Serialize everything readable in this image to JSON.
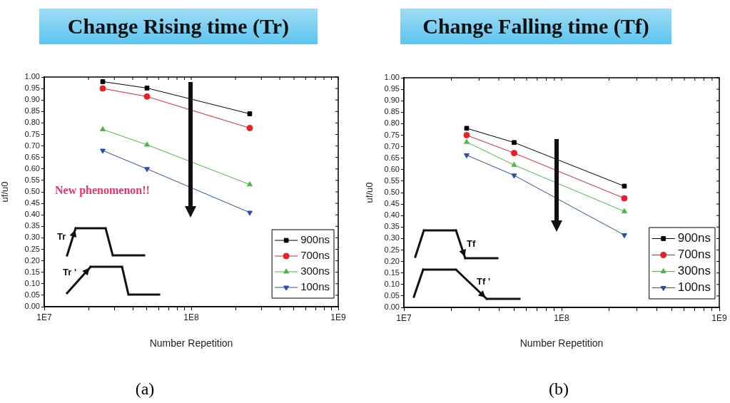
{
  "chart_data": [
    {
      "type": "line",
      "title": "Change Rising time (Tr)",
      "xlabel": "Number Repetition",
      "ylabel": "uf/u0",
      "log": "x",
      "grid": false,
      "legend": "bottom right",
      "x": [
        25000000,
        50000000,
        250000000
      ],
      "xlim": [
        10000000,
        1000000000
      ],
      "xticks": [
        {
          "value": 10000000,
          "label": "1E7"
        },
        {
          "value": 20000000,
          "label": null
        },
        {
          "value": 30000000,
          "label": null
        },
        {
          "value": 40000000,
          "label": null
        },
        {
          "value": 50000000,
          "label": null
        },
        {
          "value": 60000000,
          "label": null
        },
        {
          "value": 70000000,
          "label": null
        },
        {
          "value": 80000000,
          "label": null
        },
        {
          "value": 90000000,
          "label": null
        },
        {
          "value": 100000000,
          "label": "1E8"
        },
        {
          "value": 200000000,
          "label": null
        },
        {
          "value": 300000000,
          "label": null
        },
        {
          "value": 400000000,
          "label": null
        },
        {
          "value": 500000000,
          "label": null
        },
        {
          "value": 600000000,
          "label": null
        },
        {
          "value": 700000000,
          "label": null
        },
        {
          "value": 800000000,
          "label": null
        },
        {
          "value": 900000000,
          "label": null
        },
        {
          "value": 1000000000,
          "label": "1E9"
        }
      ],
      "ylim": [
        0,
        1
      ],
      "yticks": [
        {
          "value": 0,
          "label": "0.00"
        },
        {
          "value": 0.05,
          "label": "0.05"
        },
        {
          "value": 0.1,
          "label": "0.10"
        },
        {
          "value": 0.15,
          "label": "0.15"
        },
        {
          "value": 0.2,
          "label": "0.20"
        },
        {
          "value": 0.25,
          "label": "0.25"
        },
        {
          "value": 0.3,
          "label": "0.30"
        },
        {
          "value": 0.35,
          "label": "0.35"
        },
        {
          "value": 0.4,
          "label": "0.40"
        },
        {
          "value": 0.45,
          "label": "0.45"
        },
        {
          "value": 0.5,
          "label": "0.50"
        },
        {
          "value": 0.55,
          "label": "0.55"
        },
        {
          "value": 0.6,
          "label": "0.60"
        },
        {
          "value": 0.65,
          "label": "0.65"
        },
        {
          "value": 0.7,
          "label": "0.70"
        },
        {
          "value": 0.75,
          "label": "0.75"
        },
        {
          "value": 0.8,
          "label": "0.80"
        },
        {
          "value": 0.85,
          "label": "0.85"
        },
        {
          "value": 0.9,
          "label": "0.90"
        },
        {
          "value": 0.95,
          "label": "0.95"
        },
        {
          "value": 1,
          "label": "1.00"
        }
      ],
      "series": [
        {
          "name": "900ns",
          "color": "#000000",
          "marker": "square",
          "values": [
            0.98,
            0.952,
            0.84
          ]
        },
        {
          "name": "700ns",
          "color": "#e8202a",
          "marker": "circle",
          "values": [
            0.95,
            0.915,
            0.778
          ]
        },
        {
          "name": "300ns",
          "color": "#4db848",
          "marker": "triangle",
          "values": [
            0.772,
            0.705,
            0.532
          ]
        },
        {
          "name": "100ns",
          "color": "#2850a8",
          "marker": "triangle-down",
          "values": [
            0.68,
            0.6,
            0.41
          ]
        }
      ],
      "annotations": [
        "New phenomenon!!",
        "Tr",
        "Tr '",
        "(a)"
      ]
    },
    {
      "type": "line",
      "title": "Change Falling time (Tf)",
      "xlabel": "Number Repetition",
      "ylabel": "uf/u0",
      "log": "x",
      "grid": false,
      "legend": "bottom right",
      "x": [
        25000000,
        50000000,
        250000000
      ],
      "xlim": [
        10000000,
        1000000000
      ],
      "xticks": [
        {
          "value": 10000000,
          "label": "1E7"
        },
        {
          "value": 20000000,
          "label": null
        },
        {
          "value": 30000000,
          "label": null
        },
        {
          "value": 40000000,
          "label": null
        },
        {
          "value": 50000000,
          "label": null
        },
        {
          "value": 60000000,
          "label": null
        },
        {
          "value": 70000000,
          "label": null
        },
        {
          "value": 80000000,
          "label": null
        },
        {
          "value": 90000000,
          "label": null
        },
        {
          "value": 100000000,
          "label": "1E8"
        },
        {
          "value": 200000000,
          "label": null
        },
        {
          "value": 300000000,
          "label": null
        },
        {
          "value": 400000000,
          "label": null
        },
        {
          "value": 500000000,
          "label": null
        },
        {
          "value": 600000000,
          "label": null
        },
        {
          "value": 700000000,
          "label": null
        },
        {
          "value": 800000000,
          "label": null
        },
        {
          "value": 900000000,
          "label": null
        },
        {
          "value": 1000000000,
          "label": "1E9"
        }
      ],
      "ylim": [
        0,
        1
      ],
      "yticks": [
        {
          "value": 0,
          "label": "0.00"
        },
        {
          "value": 0.05,
          "label": "0.05"
        },
        {
          "value": 0.1,
          "label": "0.10"
        },
        {
          "value": 0.15,
          "label": "0.15"
        },
        {
          "value": 0.2,
          "label": "0.20"
        },
        {
          "value": 0.25,
          "label": "0.25"
        },
        {
          "value": 0.3,
          "label": "0.30"
        },
        {
          "value": 0.35,
          "label": "0.35"
        },
        {
          "value": 0.4,
          "label": "0.40"
        },
        {
          "value": 0.45,
          "label": "0.45"
        },
        {
          "value": 0.5,
          "label": "0.50"
        },
        {
          "value": 0.55,
          "label": "0.55"
        },
        {
          "value": 0.6,
          "label": "0.60"
        },
        {
          "value": 0.65,
          "label": "0.65"
        },
        {
          "value": 0.7,
          "label": "0.70"
        },
        {
          "value": 0.75,
          "label": "0.75"
        },
        {
          "value": 0.8,
          "label": "0.80"
        },
        {
          "value": 0.85,
          "label": "0.85"
        },
        {
          "value": 0.9,
          "label": "0.90"
        },
        {
          "value": 0.95,
          "label": "0.95"
        },
        {
          "value": 1,
          "label": "1.00"
        }
      ],
      "series": [
        {
          "name": "900ns",
          "color": "#000000",
          "marker": "square",
          "values": [
            0.78,
            0.718,
            0.528
          ]
        },
        {
          "name": "700ns",
          "color": "#e8202a",
          "marker": "circle",
          "values": [
            0.75,
            0.672,
            0.475
          ]
        },
        {
          "name": "300ns",
          "color": "#4db848",
          "marker": "triangle",
          "values": [
            0.72,
            0.62,
            0.418
          ]
        },
        {
          "name": "100ns",
          "color": "#2850a8",
          "marker": "triangle-down",
          "values": [
            0.663,
            0.575,
            0.315
          ]
        }
      ],
      "annotations": [
        "Tf",
        "Tf '",
        "(b)"
      ]
    }
  ]
}
